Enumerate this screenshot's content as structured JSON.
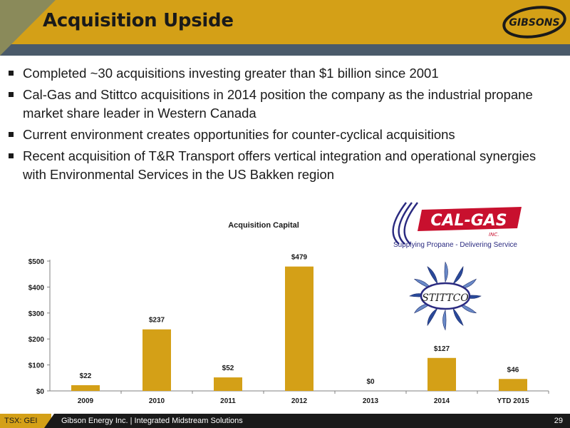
{
  "slide": {
    "title": "Acquisition Upside",
    "bullets": [
      "Completed ~30 acquisitions investing greater than $1 billion since 2001",
      "Cal-Gas and Stittco acquisitions in 2014 position the company as the industrial propane market share leader in Western Canada",
      "Current environment creates opportunities for counter-cyclical acquisitions",
      "Recent acquisition of T&R Transport offers vertical integration and operational synergies with Environmental Services in the US Bakken region"
    ]
  },
  "logos": {
    "gibsons": "GIBSONS",
    "calgas_name": "CAL-GAS",
    "calgas_inc": "INC.",
    "calgas_tagline": "Supplying Propane - Delivering Service",
    "stittco": "STITTCO"
  },
  "colors": {
    "brand_gold": "#d4a017",
    "bar": "#d4a017",
    "dark": "#1a1a1a",
    "stripe": "#4a5a6a"
  },
  "chart_data": {
    "type": "bar",
    "title": "Acquisition Capital",
    "categories": [
      "2009",
      "2010",
      "2011",
      "2012",
      "2013",
      "2014",
      "YTD 2015"
    ],
    "values": [
      22,
      237,
      52,
      479,
      0,
      127,
      46
    ],
    "data_labels": [
      "$22",
      "$237",
      "$52",
      "$479",
      "$0",
      "$127",
      "$46"
    ],
    "yticks": [
      "$0",
      "$100",
      "$200",
      "$300",
      "$400",
      "$500"
    ],
    "ylim": [
      0,
      500
    ],
    "grid": false,
    "legend": "none"
  },
  "footer": {
    "ticker": "TSX: GEI",
    "company": "Gibson Energy Inc.  |  Integrated Midstream Solutions",
    "page": "29"
  }
}
